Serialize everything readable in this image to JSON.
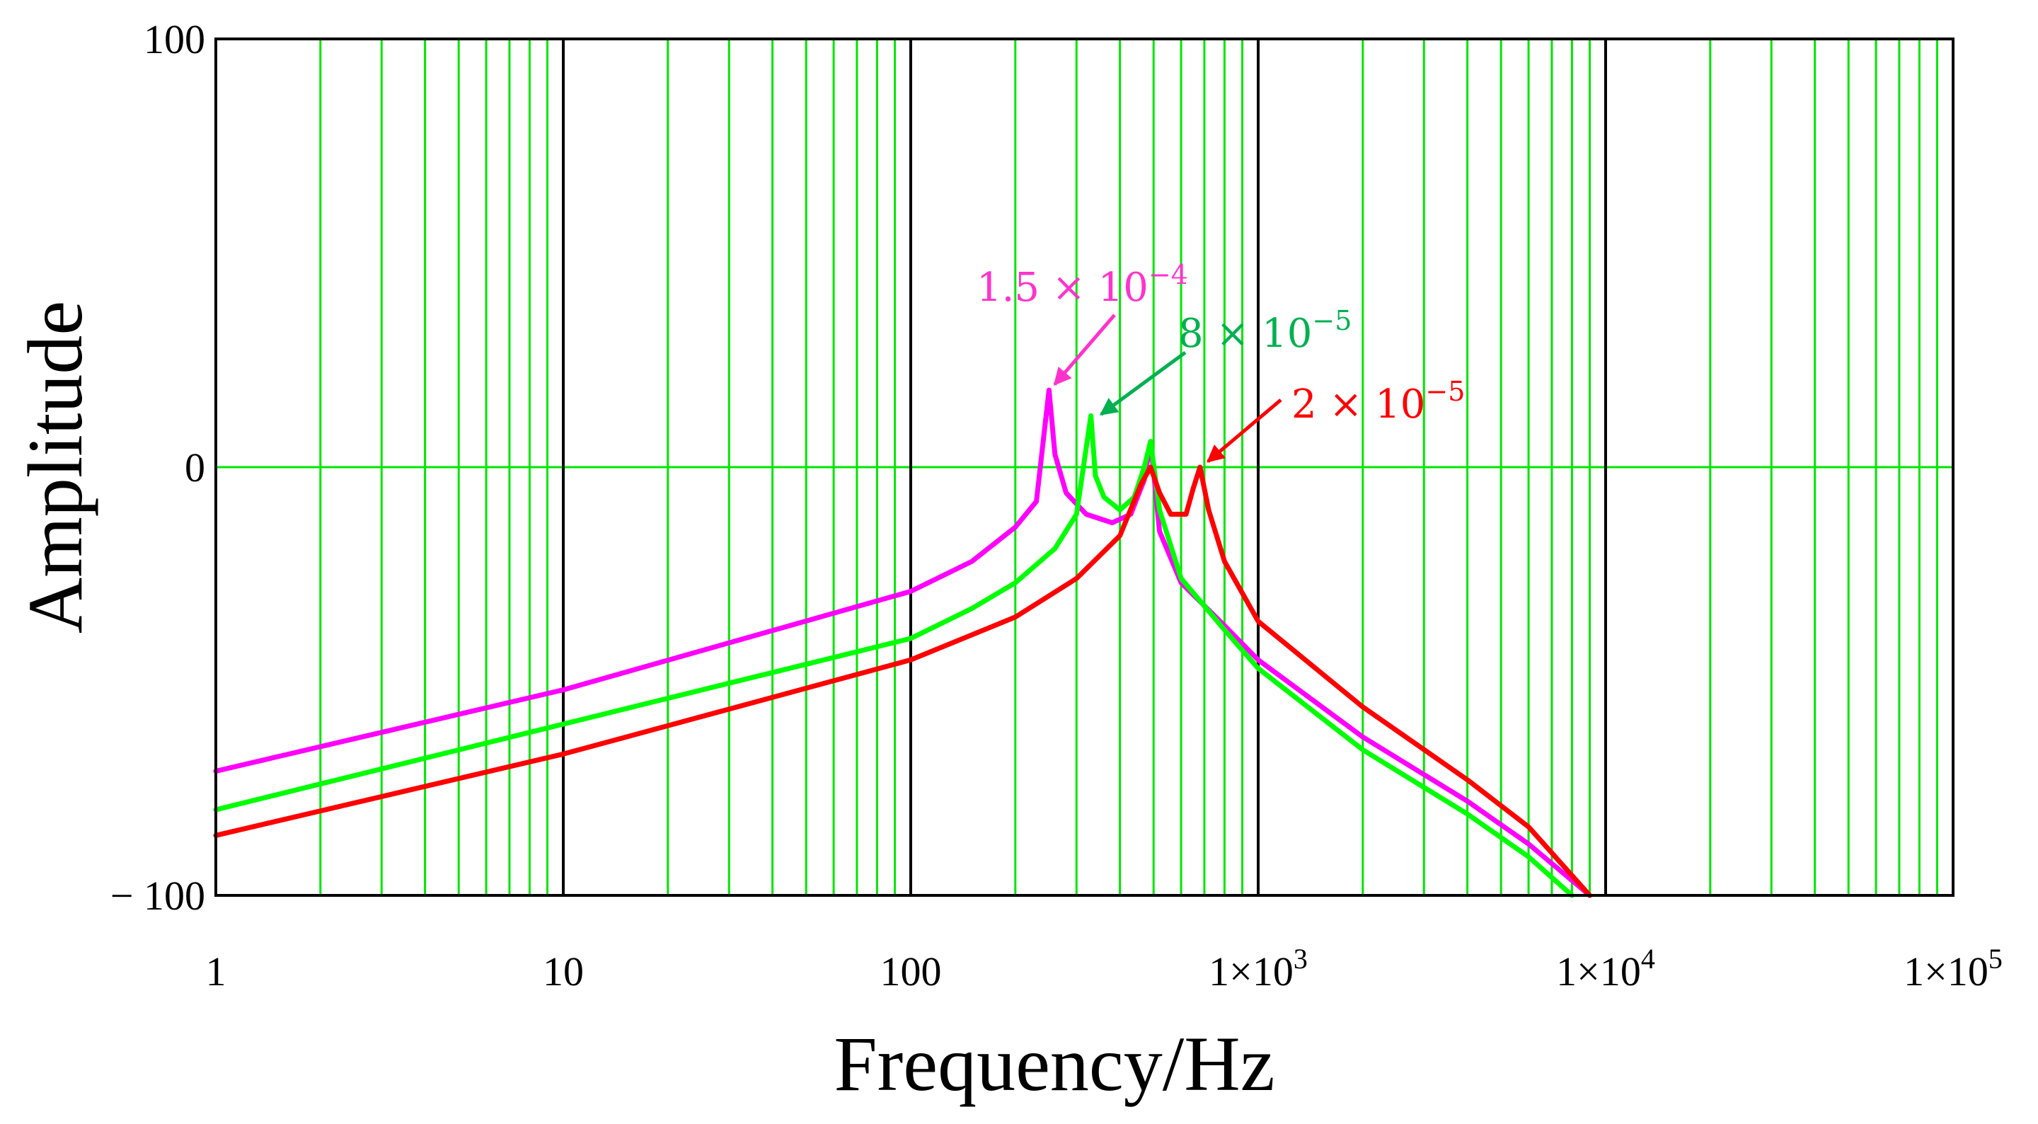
{
  "chart_data": {
    "type": "line",
    "title": "",
    "xlabel": "Frequency/Hz",
    "ylabel": "Amplitude",
    "xscale": "log",
    "xlim": [
      1,
      100000
    ],
    "ylim": [
      -100,
      100
    ],
    "grid": true,
    "grid_color": "#00e600",
    "major_grid_color": "#000000",
    "x_ticks": [
      {
        "value": 1,
        "label": "1",
        "sup": ""
      },
      {
        "value": 10,
        "label": "10",
        "sup": ""
      },
      {
        "value": 100,
        "label": "100",
        "sup": ""
      },
      {
        "value": 1000,
        "label": "1×10",
        "sup": "3"
      },
      {
        "value": 10000,
        "label": "1×10",
        "sup": "4"
      },
      {
        "value": 100000,
        "label": "1×10",
        "sup": "5"
      }
    ],
    "y_ticks": [
      {
        "value": 100,
        "label": "100"
      },
      {
        "value": 0,
        "label": "0"
      },
      {
        "value": -100,
        "label": "− 100"
      }
    ],
    "series": [
      {
        "name": "1.5 × 10^-4",
        "color": "#ff00ff",
        "x": [
          1,
          10,
          100,
          150,
          200,
          230,
          250,
          260,
          280,
          320,
          380,
          430,
          470,
          490,
          520,
          600,
          800,
          1000,
          2000,
          4000,
          6000,
          9000
        ],
        "y": [
          -71,
          -52,
          -29,
          -22,
          -14,
          -8,
          18,
          3,
          -6,
          -11,
          -13,
          -11,
          -3,
          6,
          -15,
          -27,
          -37,
          -45,
          -63,
          -78,
          -88,
          -100
        ]
      },
      {
        "name": "8 × 10^-5",
        "color": "#00ff00",
        "x": [
          1,
          10,
          100,
          150,
          200,
          260,
          300,
          330,
          340,
          360,
          400,
          440,
          470,
          490,
          520,
          600,
          800,
          1000,
          2000,
          4000,
          6000,
          8000
        ],
        "y": [
          -80,
          -60,
          -40,
          -33,
          -27,
          -19,
          -11,
          12,
          -2,
          -7,
          -10,
          -7,
          0,
          6,
          -10,
          -26,
          -38,
          -47,
          -66,
          -81,
          -91,
          -100
        ]
      },
      {
        "name": "2 × 10^-5",
        "color": "#ff0000",
        "x": [
          1,
          10,
          100,
          200,
          300,
          400,
          460,
          490,
          520,
          560,
          620,
          650,
          680,
          720,
          800,
          1000,
          2000,
          4000,
          6000,
          9000
        ],
        "y": [
          -86,
          -67,
          -45,
          -35,
          -26,
          -16,
          -4,
          0,
          -6,
          -11,
          -11,
          -5,
          0,
          -10,
          -22,
          -36,
          -56,
          -73,
          -84,
          -100
        ]
      }
    ],
    "annotations": [
      {
        "text": "1.5 × 10",
        "sup": "−4",
        "color": "#ff33cc",
        "arrow_x": 250,
        "arrow_y": 18
      },
      {
        "text": "8 × 10",
        "sup": "−5",
        "color": "#00b050",
        "arrow_x": 340,
        "arrow_y": 11
      },
      {
        "text": "2 × 10",
        "sup": "−5",
        "color": "#ff0000",
        "arrow_x": 690,
        "arrow_y": 0
      }
    ]
  }
}
